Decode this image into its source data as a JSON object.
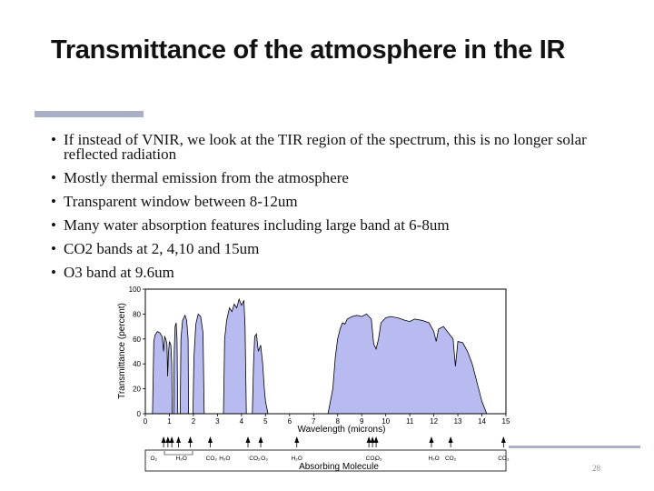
{
  "slide": {
    "title": "Transmittance of the atmosphere in the IR",
    "page_number": "28",
    "bullets": [
      "If instead of VNIR, we look at the TIR region of the spectrum, this is no longer solar reflected radiation",
      "Mostly thermal emission from the atmosphere",
      "Transparent window between 8-12um",
      "Many water absorption features including large band at 6-8um",
      "CO2 bands at 2, 4,10 and 15um",
      "O3 band at 9.6um"
    ],
    "bullet_symbol": "•"
  },
  "chart_data": {
    "type": "area",
    "ylabel": "Transmittance (percent)",
    "xlabel": "Wavelength (microns)",
    "xlim": [
      0,
      15
    ],
    "ylim": [
      0,
      100
    ],
    "x_ticks": [
      "0",
      "1",
      "2",
      "3",
      "4",
      "5",
      "6",
      "7",
      "8",
      "9",
      "10",
      "11",
      "12",
      "13",
      "14",
      "15"
    ],
    "y_ticks": [
      "0",
      "20",
      "40",
      "60",
      "80",
      "100"
    ],
    "fill_color": "#b8bbf0",
    "series": [
      {
        "name": "window-0.3-1.1",
        "points": [
          [
            0.3,
            0
          ],
          [
            0.35,
            58
          ],
          [
            0.4,
            63
          ],
          [
            0.5,
            66
          ],
          [
            0.6,
            65
          ],
          [
            0.7,
            62
          ],
          [
            0.76,
            50
          ],
          [
            0.8,
            62
          ],
          [
            0.85,
            60
          ],
          [
            0.9,
            56
          ],
          [
            0.93,
            30
          ],
          [
            0.96,
            48
          ],
          [
            1.0,
            58
          ],
          [
            1.06,
            55
          ],
          [
            1.1,
            40
          ],
          [
            1.12,
            0
          ]
        ]
      },
      {
        "name": "window-1.2-1.35",
        "points": [
          [
            1.18,
            0
          ],
          [
            1.2,
            50
          ],
          [
            1.24,
            70
          ],
          [
            1.28,
            73
          ],
          [
            1.32,
            60
          ],
          [
            1.35,
            0
          ]
        ]
      },
      {
        "name": "window-1.45-1.8",
        "points": [
          [
            1.45,
            0
          ],
          [
            1.48,
            60
          ],
          [
            1.55,
            75
          ],
          [
            1.65,
            79
          ],
          [
            1.72,
            75
          ],
          [
            1.78,
            60
          ],
          [
            1.8,
            0
          ]
        ]
      },
      {
        "name": "window-2.0-2.45",
        "points": [
          [
            1.98,
            0
          ],
          [
            2.02,
            45
          ],
          [
            2.1,
            72
          ],
          [
            2.2,
            80
          ],
          [
            2.3,
            78
          ],
          [
            2.4,
            65
          ],
          [
            2.45,
            0
          ]
        ]
      },
      {
        "name": "window-3.3-4.2",
        "points": [
          [
            3.25,
            0
          ],
          [
            3.3,
            60
          ],
          [
            3.38,
            75
          ],
          [
            3.5,
            85
          ],
          [
            3.6,
            82
          ],
          [
            3.7,
            88
          ],
          [
            3.8,
            85
          ],
          [
            3.9,
            92
          ],
          [
            4.0,
            87
          ],
          [
            4.1,
            91
          ],
          [
            4.15,
            70
          ],
          [
            4.2,
            0
          ]
        ]
      },
      {
        "name": "window-4.5-5.1",
        "points": [
          [
            4.45,
            0
          ],
          [
            4.5,
            40
          ],
          [
            4.55,
            62
          ],
          [
            4.62,
            64
          ],
          [
            4.7,
            50
          ],
          [
            4.8,
            55
          ],
          [
            4.88,
            40
          ],
          [
            4.95,
            20
          ],
          [
            5.0,
            10
          ],
          [
            5.1,
            0
          ]
        ]
      },
      {
        "name": "window-7.8-14.2",
        "points": [
          [
            7.6,
            0
          ],
          [
            7.8,
            20
          ],
          [
            7.9,
            45
          ],
          [
            8.0,
            60
          ],
          [
            8.1,
            68
          ],
          [
            8.2,
            73
          ],
          [
            8.3,
            72
          ],
          [
            8.4,
            76
          ],
          [
            8.6,
            78
          ],
          [
            8.8,
            79
          ],
          [
            9.0,
            78
          ],
          [
            9.2,
            80
          ],
          [
            9.4,
            76
          ],
          [
            9.5,
            56
          ],
          [
            9.6,
            52
          ],
          [
            9.7,
            60
          ],
          [
            9.8,
            73
          ],
          [
            10.0,
            77
          ],
          [
            10.2,
            78
          ],
          [
            10.5,
            77
          ],
          [
            10.8,
            75
          ],
          [
            11.0,
            74
          ],
          [
            11.2,
            76
          ],
          [
            11.5,
            75
          ],
          [
            11.8,
            73
          ],
          [
            12.0,
            66
          ],
          [
            12.1,
            58
          ],
          [
            12.2,
            68
          ],
          [
            12.4,
            70
          ],
          [
            12.6,
            65
          ],
          [
            12.8,
            60
          ],
          [
            12.9,
            38
          ],
          [
            13.0,
            58
          ],
          [
            13.2,
            57
          ],
          [
            13.4,
            50
          ],
          [
            13.6,
            40
          ],
          [
            13.8,
            25
          ],
          [
            14.0,
            10
          ],
          [
            14.2,
            0
          ]
        ]
      }
    ]
  },
  "molecule_strip": {
    "title": "Absorbing Molecule",
    "labels": [
      {
        "text": "O₂",
        "at": 0.35
      },
      {
        "text": "H₂O",
        "at": 1.5
      },
      {
        "text": "CO₂",
        "at": 2.75
      },
      {
        "text": "H₂O",
        "at": 3.3
      },
      {
        "text": "CO₂",
        "at": 4.55
      },
      {
        "text": "O₃",
        "at": 4.95
      },
      {
        "text": "H₂O",
        "at": 6.3
      },
      {
        "text": "CO₂",
        "at": 9.4
      },
      {
        "text": "O₃",
        "at": 9.7
      },
      {
        "text": "H₂O",
        "at": 12.0
      },
      {
        "text": "CO₂",
        "at": 12.7
      },
      {
        "text": "CO₂",
        "at": 14.9
      }
    ],
    "arrows": [
      0.76,
      0.94,
      1.1,
      1.38,
      1.87,
      2.7,
      4.27,
      4.8,
      6.3,
      9.3,
      9.45,
      9.6,
      11.9,
      12.7,
      14.9
    ]
  }
}
